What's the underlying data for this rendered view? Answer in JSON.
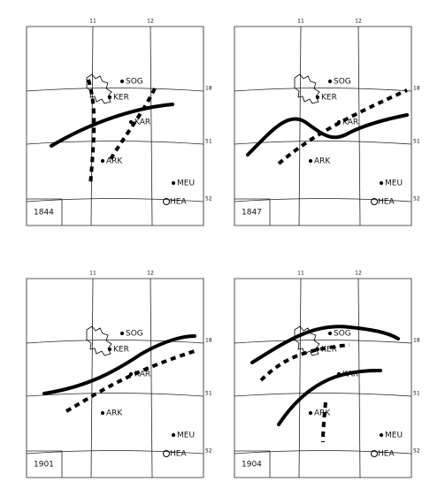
{
  "panels": [
    {
      "year": "1844"
    },
    {
      "year": "1847"
    },
    {
      "year": "1901"
    },
    {
      "year": "1904"
    }
  ],
  "stations": [
    "SOG",
    "KER",
    "KAR",
    "ARK",
    "MEU",
    "HEA"
  ],
  "grid_labels": {
    "top": [
      "11",
      "12"
    ],
    "right": [
      "18",
      "51",
      "52"
    ]
  }
}
